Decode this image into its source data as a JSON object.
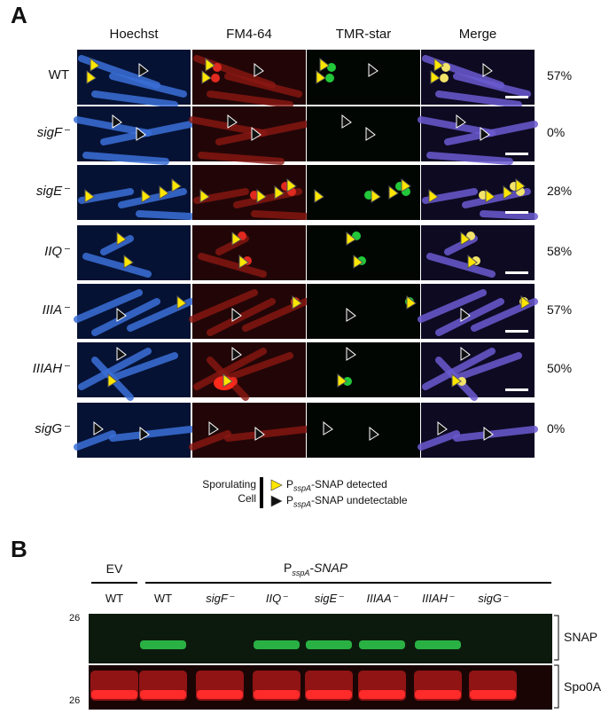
{
  "panel_a": {
    "letter": "A",
    "columns": [
      "Hoechst",
      "FM4-64",
      "TMR-star",
      "Merge"
    ],
    "rows": [
      {
        "label": "WT",
        "percent": "57%"
      },
      {
        "label": "sigF⁻",
        "percent": "0%"
      },
      {
        "label": "sigE⁻",
        "percent": "28%"
      },
      {
        "label": "IIQ⁻",
        "percent": "58%"
      },
      {
        "label": "IIIA⁻",
        "percent": "57%"
      },
      {
        "label": "IIIAH⁻",
        "percent": "50%"
      },
      {
        "label": "sigG⁻",
        "percent": "0%"
      }
    ],
    "legend": {
      "line1": "Sporulating",
      "line2": "Cell",
      "detected": "-SNAP detected",
      "undetectable": "-SNAP undetectable",
      "promoter": "P",
      "promoter_sub": "sspA"
    }
  },
  "panel_b": {
    "letter": "B",
    "ev_label": "EV",
    "construct_label": "P",
    "construct_sub": "sspA",
    "construct_suffix": "-SNAP",
    "lanes": [
      "WT",
      "WT",
      "sigF⁻",
      "IIQ⁻",
      "sigE⁻",
      "IIIAA⁻",
      "IIIAH⁻",
      "sigG⁻"
    ],
    "marker_top": "26",
    "marker_bottom": "26",
    "band_snap": "SNAP",
    "band_spo0a": "Spo0A"
  },
  "colors": {
    "hoechst": "#3a6fd8",
    "fm464": "#c8241c",
    "tmr": "#22c83a",
    "arrow_fill": "#ffe600"
  }
}
